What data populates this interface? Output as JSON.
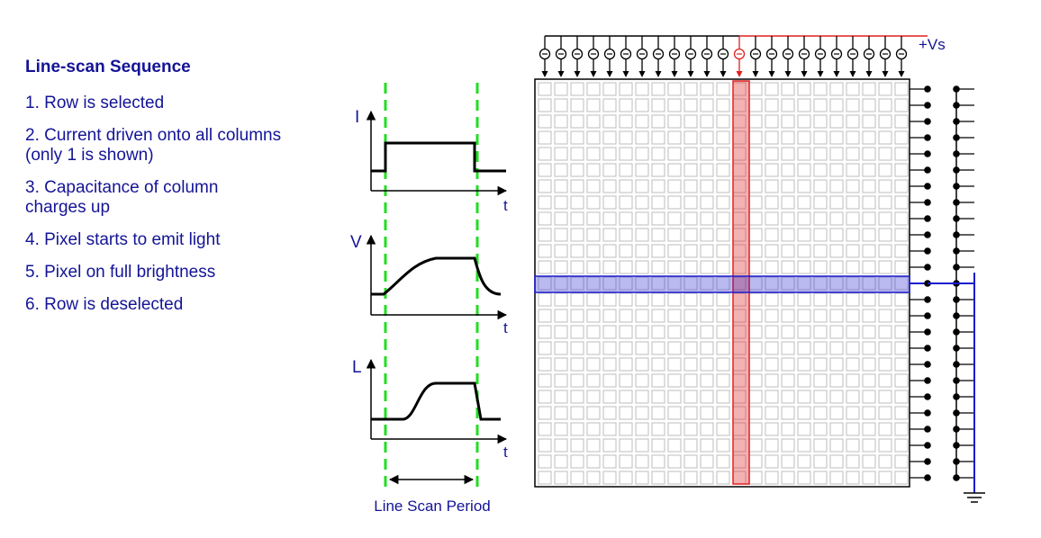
{
  "steps_panel": {
    "title": "Line-scan Sequence",
    "steps": [
      [
        "1. Row is selected"
      ],
      [
        "2. Current driven onto all columns",
        "(only 1 is shown)"
      ],
      [
        "3. Capacitance of column",
        "charges up"
      ],
      [
        "4. Pixel starts to emit light"
      ],
      [
        "5. Pixel on full brightness"
      ],
      [
        "6. Row is deselected"
      ]
    ]
  },
  "waveforms": {
    "current": {
      "axis_label": "I",
      "time_label": "t"
    },
    "voltage": {
      "axis_label": "V",
      "time_label": "t"
    },
    "light": {
      "axis_label": "L",
      "time_label": "t"
    },
    "period_label": "Line Scan Period"
  },
  "matrix": {
    "supply_label": "+Vs",
    "rows": 25,
    "cols": 23,
    "selected_row": 12,
    "selected_col": 12
  },
  "colors": {
    "text_blue": "#141496",
    "guide_green": "#22dd22",
    "column_red": "#e02020",
    "row_blue": "#1a1ad0",
    "grid_cell": "#bdbdbd"
  }
}
